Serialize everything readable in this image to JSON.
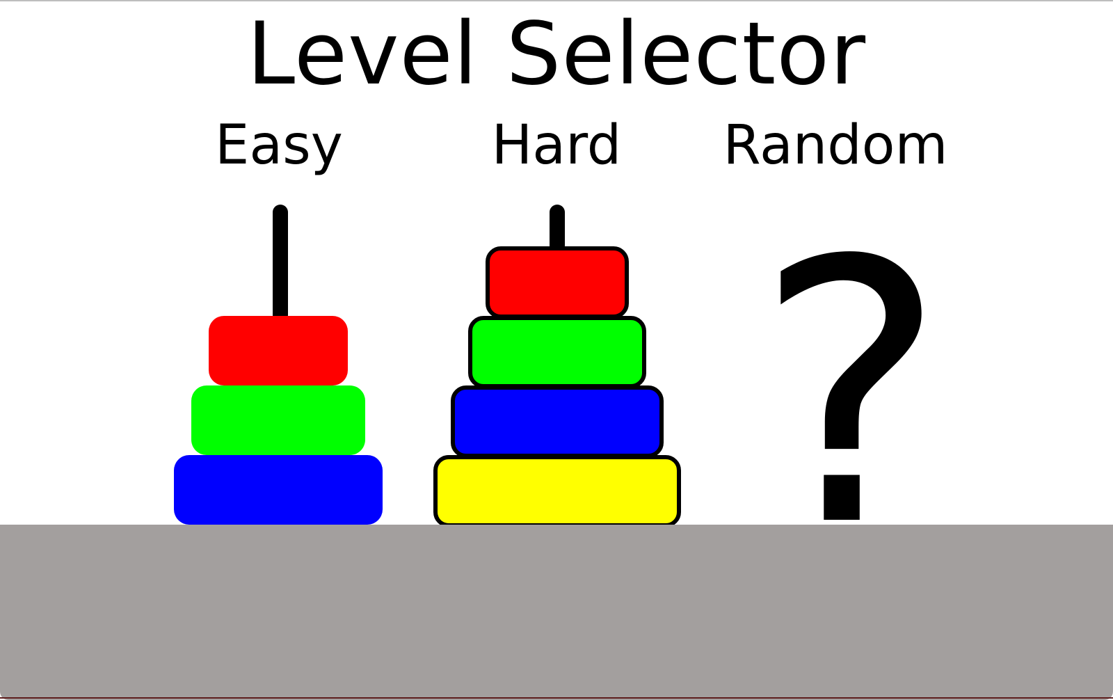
{
  "title": "Level Selector",
  "levels": [
    {
      "label": "Easy",
      "disks": [
        {
          "color": "#ff0000"
        },
        {
          "color": "#00ff00"
        },
        {
          "color": "#0000ff"
        }
      ]
    },
    {
      "label": "Hard",
      "disks": [
        {
          "color": "#ff0000"
        },
        {
          "color": "#00ff00"
        },
        {
          "color": "#0000ff"
        },
        {
          "color": "#ffff00"
        }
      ]
    },
    {
      "label": "Random",
      "symbol": "?"
    }
  ],
  "colors": {
    "ground": "#a39f9e",
    "peg": "#000000"
  }
}
